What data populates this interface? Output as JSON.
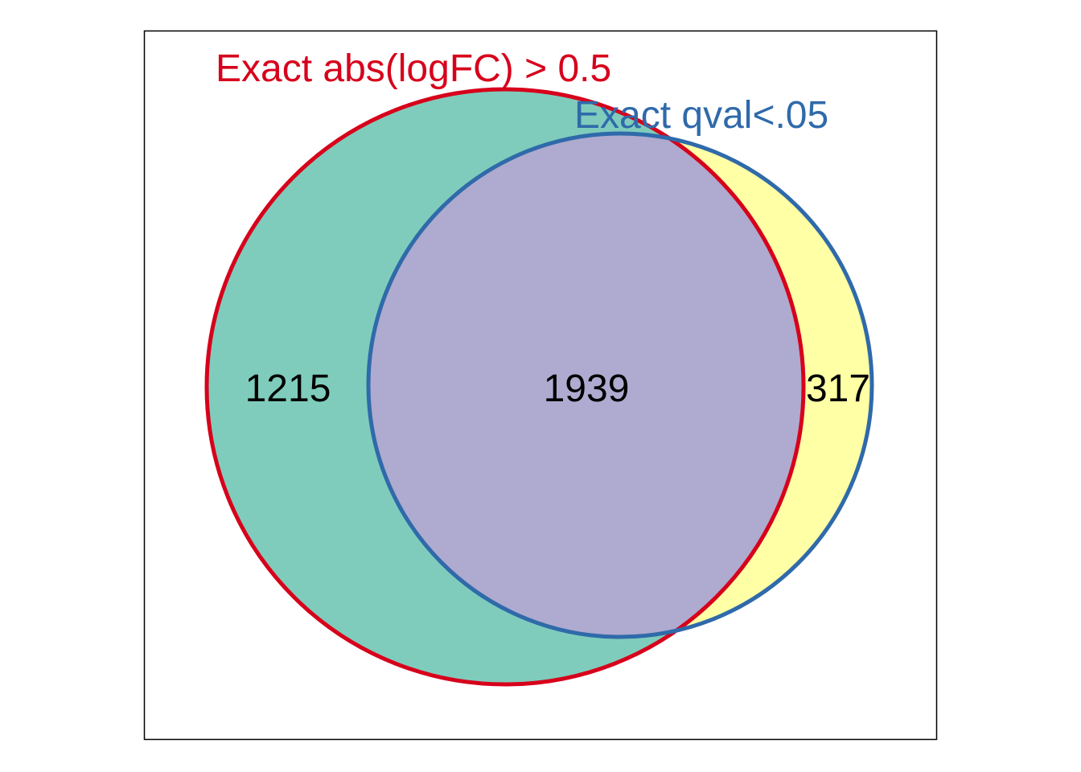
{
  "venn": {
    "sets": [
      {
        "label": "Exact abs(logFC) > 0.5",
        "outline_color": "#D7001B",
        "fill_color": "#7FCCBC"
      },
      {
        "label": "Exact qval<.05",
        "outline_color": "#2F6AAA",
        "fill_color": "#FFFFA6"
      }
    ],
    "overlap_fill_color": "#AFAACF",
    "regions": {
      "only_logfc": "1215",
      "both": "1939",
      "only_qval": "317"
    }
  }
}
